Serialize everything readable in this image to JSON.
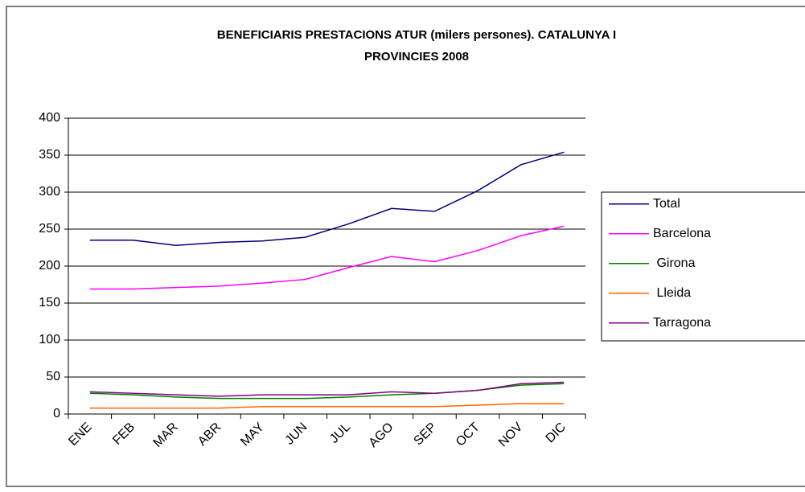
{
  "chart_data": {
    "type": "line",
    "title": [
      "BENEFICIARIS PRESTACIONS ATUR (milers persones). CATALUNYA I",
      "PROVINCIES 2008"
    ],
    "categories": [
      "ENE",
      "FEB",
      "MAR",
      "ABR",
      "MAY",
      "JUN",
      "JUL",
      "AGO",
      "SEP",
      "OCT",
      "NOV",
      "DIC"
    ],
    "series": [
      {
        "name": "Total",
        "color": "#000080",
        "values": [
          235,
          235,
          228,
          232,
          234,
          239,
          257,
          278,
          274,
          302,
          337,
          354
        ]
      },
      {
        "name": "Barcelona",
        "color": "#ff00ff",
        "values": [
          169,
          169,
          171,
          173,
          177,
          182,
          198,
          213,
          206,
          221,
          241,
          254
        ]
      },
      {
        "name": " Girona",
        "color": "#008000",
        "values": [
          28,
          26,
          23,
          21,
          21,
          21,
          23,
          26,
          28,
          32,
          39,
          41
        ]
      },
      {
        "name": " Lleida",
        "color": "#ff6600",
        "values": [
          8,
          8,
          8,
          8,
          10,
          10,
          10,
          10,
          10,
          12,
          14,
          14
        ]
      },
      {
        "name": "Tarragona",
        "color": "#800080",
        "values": [
          30,
          28,
          26,
          24,
          26,
          26,
          26,
          30,
          28,
          32,
          41,
          43
        ]
      }
    ],
    "ylim": [
      0,
      400
    ],
    "yticks": [
      0,
      50,
      100,
      150,
      200,
      250,
      300,
      350,
      400
    ],
    "grid": true,
    "legend": "right"
  }
}
